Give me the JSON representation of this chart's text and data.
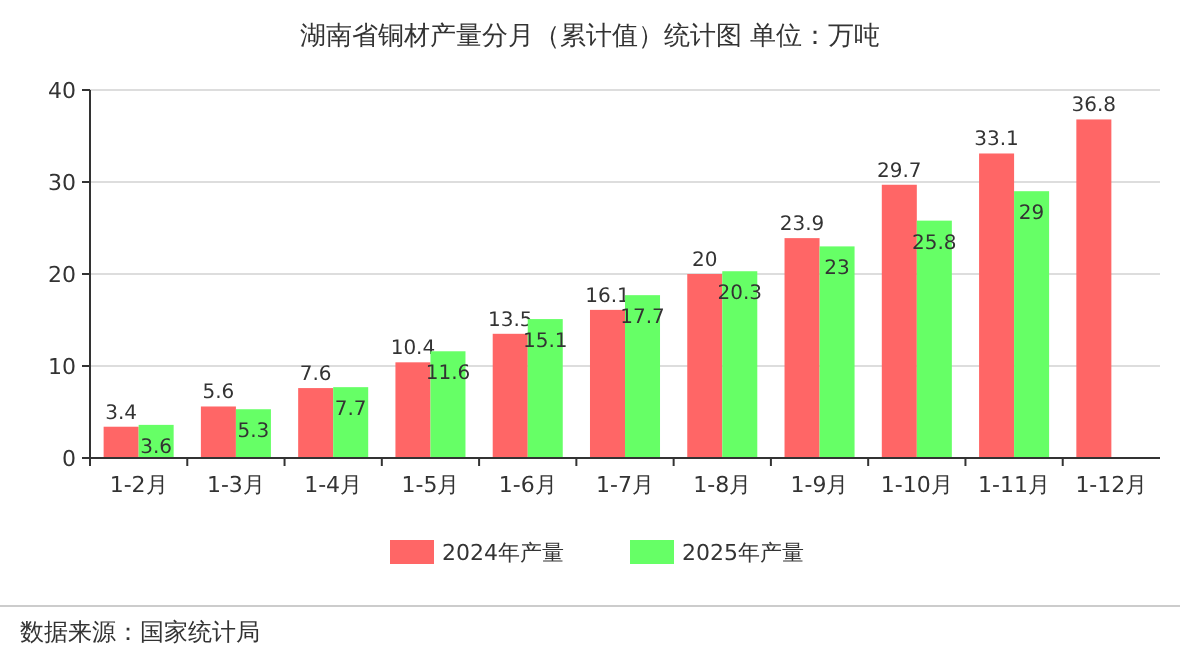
{
  "chart_data": {
    "type": "bar",
    "title": "湖南省铜材产量分月（累计值）统计图 单位：万吨",
    "categories": [
      "1-2月",
      "1-3月",
      "1-4月",
      "1-5月",
      "1-6月",
      "1-7月",
      "1-8月",
      "1-9月",
      "1-10月",
      "1-11月",
      "1-12月"
    ],
    "series": [
      {
        "name": "2024年产量",
        "color": "#ff6666",
        "values": [
          3.4,
          5.6,
          7.6,
          10.4,
          13.5,
          16.1,
          20,
          23.9,
          29.7,
          33.1,
          36.8
        ]
      },
      {
        "name": "2025年产量",
        "color": "#66ff66",
        "values": [
          3.6,
          5.3,
          7.7,
          11.6,
          15.1,
          17.7,
          20.3,
          23,
          25.8,
          29,
          null
        ]
      }
    ],
    "ylim": [
      0,
      40
    ],
    "yticks": [
      0,
      10,
      20,
      30,
      40
    ],
    "grid": "y",
    "legend": "bottom",
    "data_labels": true,
    "annotations": [
      "数据来源：国家统计局"
    ]
  }
}
